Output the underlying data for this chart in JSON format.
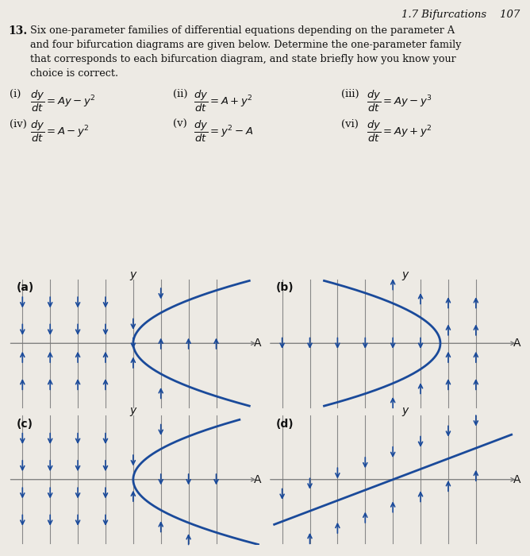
{
  "header": "1.7 Bifurcations    107",
  "problem_num": "13.",
  "line1": "Six one-parameter families of differential equations depending on the parameter A",
  "line2": "    and four bifurcation diagrams are given below. Determine the one-parameter family",
  "line3": "    that corresponds to each bifurcation diagram, and state briefly how you know your",
  "line4": "    choice is correct.",
  "bg_color": "#edeae4",
  "curve_color": "#1a4a9a",
  "arrow_color": "#1a4a9a",
  "axis_color": "#777777",
  "line_color": "#888888",
  "text_color": "#111111"
}
